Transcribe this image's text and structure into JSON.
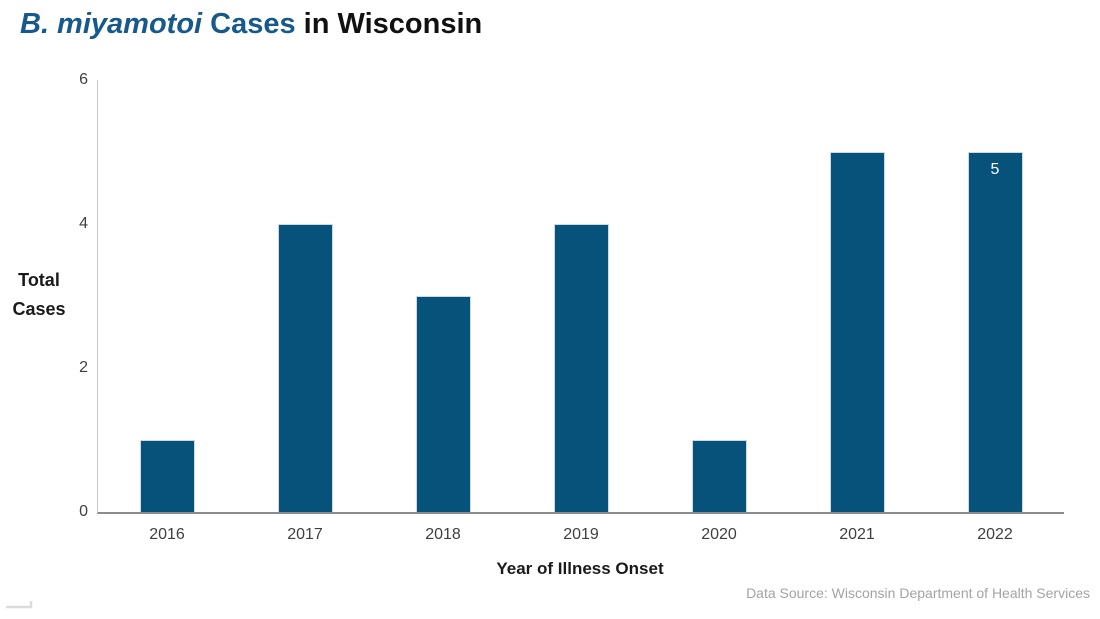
{
  "title": {
    "species": "B. miyamotoi ",
    "middle": "Cases ",
    "suffix": "in Wisconsin"
  },
  "chart_data": {
    "type": "bar",
    "title": "B. miyamotoi Cases in Wisconsin",
    "categories": [
      "2016",
      "2017",
      "2018",
      "2019",
      "2020",
      "2021",
      "2022"
    ],
    "values": [
      1,
      4,
      3,
      4,
      1,
      5,
      5
    ],
    "xlabel": "Year of Illness Onset",
    "ylabel": "Total Cases",
    "ylim": [
      0,
      6
    ],
    "yticks": [
      0,
      2,
      4,
      6
    ],
    "grid": false,
    "legend": false,
    "bar_color": "#07527B",
    "data_labels": [
      {
        "category": "2022",
        "label": "5"
      }
    ]
  },
  "footer": {
    "data_source": "Data Source: Wisconsin Department of Health Services"
  },
  "colors": {
    "title_accent": "#17598A",
    "title_text": "#111111",
    "bar": "#07527B",
    "bar_border": "#CBDAE4",
    "axis_line": "#C9C9C9",
    "baseline": "#8C8C8C",
    "tick_label": "#404040",
    "footer_text": "#A3A3A3",
    "bar_label": "#FFFFFF"
  }
}
